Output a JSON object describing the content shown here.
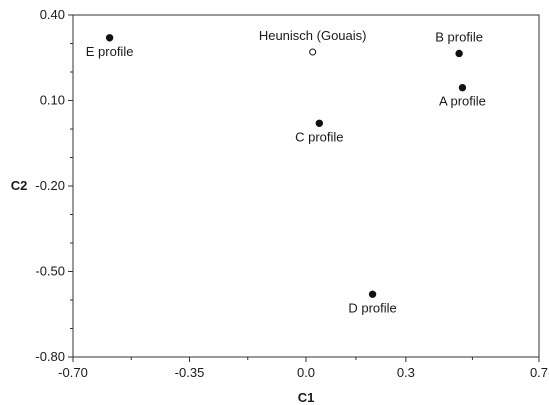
{
  "chart_data": {
    "type": "scatter",
    "title": "",
    "xlabel": "C1",
    "ylabel": "C2",
    "xlim": [
      -0.7,
      0.7
    ],
    "ylim": [
      -0.8,
      0.4
    ],
    "xticks": [
      -0.7,
      -0.35,
      0.0,
      0.3,
      0.7
    ],
    "xtick_labels": [
      "-0.70",
      "-0.35",
      "0.0",
      "0.3",
      "0.7"
    ],
    "yticks": [
      0.4,
      0.1,
      -0.2,
      -0.5,
      -0.8
    ],
    "ytick_labels": [
      "0.40",
      "0.10",
      "-0.20",
      "-0.50",
      "-0.80"
    ],
    "grid": false,
    "points": [
      {
        "label": "E profile",
        "x": -0.59,
        "y": 0.32,
        "marker": "filled",
        "label_pos": "below"
      },
      {
        "label": "Heunisch (Gouais)",
        "x": 0.02,
        "y": 0.27,
        "marker": "open",
        "label_pos": "above"
      },
      {
        "label": "B profile",
        "x": 0.46,
        "y": 0.265,
        "marker": "filled",
        "label_pos": "above"
      },
      {
        "label": "A profile",
        "x": 0.47,
        "y": 0.145,
        "marker": "filled",
        "label_pos": "below"
      },
      {
        "label": "C profile",
        "x": 0.04,
        "y": 0.02,
        "marker": "filled",
        "label_pos": "below"
      },
      {
        "label": "D profile",
        "x": 0.2,
        "y": -0.58,
        "marker": "filled",
        "label_pos": "below"
      }
    ]
  }
}
